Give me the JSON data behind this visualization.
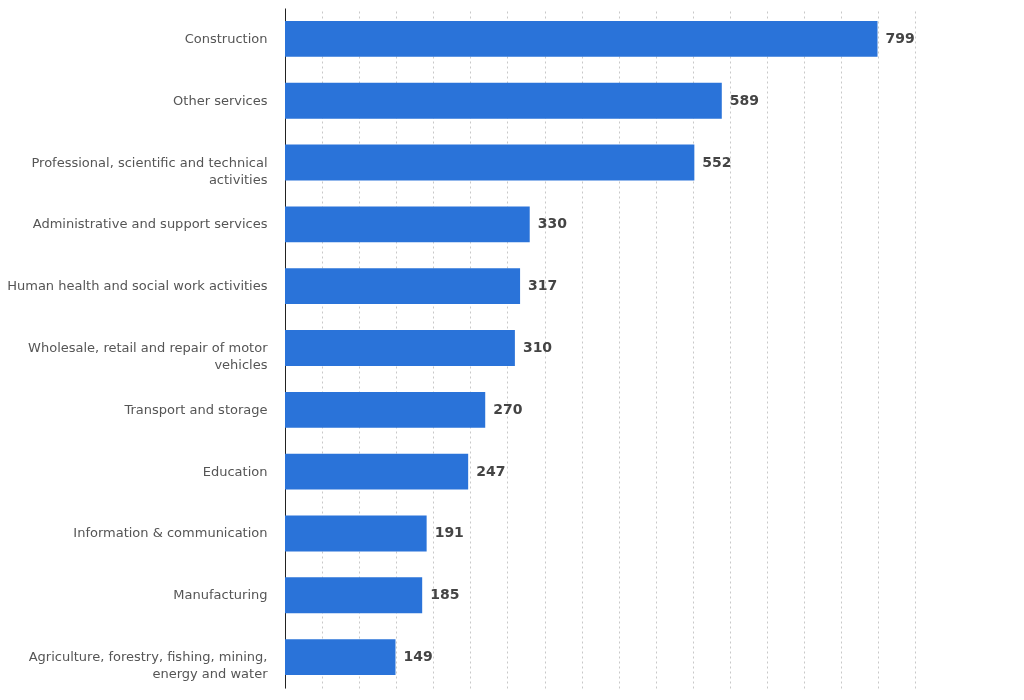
{
  "chart_data": {
    "type": "bar",
    "orientation": "horizontal",
    "categories": [
      "Construction",
      "Other services",
      "Professional, scientific and technical activities",
      "Administrative and support services",
      "Human health and social work activities",
      "Wholesale, retail and repair of motor vehicles",
      "Transport and storage",
      "Education",
      "Information & communication",
      "Manufacturing",
      "Agriculture, forestry, fishing, mining, energy and water"
    ],
    "values": [
      799,
      589,
      552,
      330,
      317,
      310,
      270,
      247,
      191,
      185,
      149
    ],
    "color": "#2a73d9",
    "xlim": [
      0,
      890
    ],
    "tick_labels": "y",
    "grid": "x",
    "data_labels": true
  }
}
